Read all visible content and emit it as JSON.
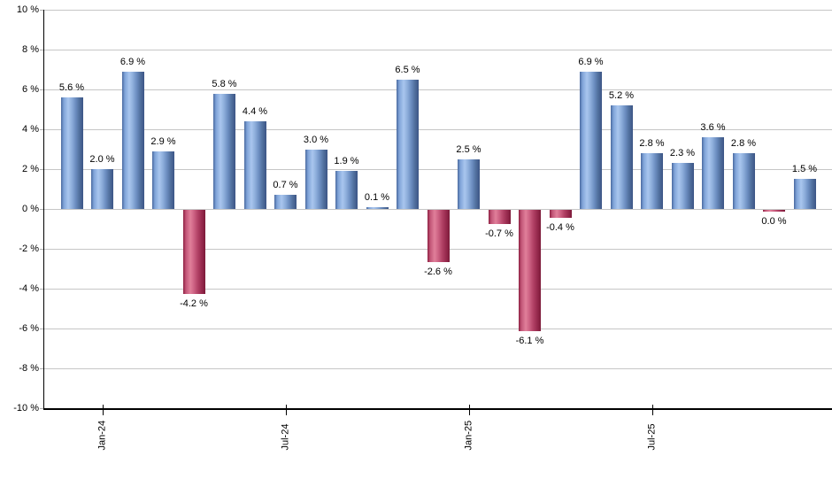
{
  "chart_data": {
    "type": "bar",
    "title": "",
    "xlabel": "",
    "ylabel": "",
    "ylim": [
      -10,
      10
    ],
    "grid": "horizontal",
    "legend": "none",
    "y_tick_values": [
      10,
      8,
      6,
      4,
      2,
      0,
      -2,
      -4,
      -6,
      -8,
      -10
    ],
    "y_tick_labels": [
      "10 %",
      "8 %",
      "6 %",
      "4 %",
      "2 %",
      "0 %",
      "-2 %",
      "-4 %",
      "-6 %",
      "-8 %",
      "-10 %"
    ],
    "values": [
      5.6,
      2.0,
      6.9,
      2.9,
      -4.2,
      5.8,
      4.4,
      0.7,
      3.0,
      1.9,
      0.1,
      6.5,
      -2.6,
      2.5,
      -0.7,
      -6.1,
      -0.4,
      6.9,
      5.2,
      2.8,
      2.3,
      3.6,
      2.8,
      0.0,
      1.5
    ],
    "bar_value_labels": [
      "5.6 %",
      "2.0 %",
      "6.9 %",
      "2.9 %",
      "-4.2 %",
      "5.8 %",
      "4.4 %",
      "0.7 %",
      "3.0 %",
      "1.9 %",
      "0.1 %",
      "6.5 %",
      "-2.6 %",
      "2.5 %",
      "-0.7 %",
      "-6.1 %",
      "-0.4 %",
      "6.9 %",
      "5.2 %",
      "2.8 %",
      "2.3 %",
      "3.6 %",
      "2.8 %",
      "0.0 %",
      "1.5 %"
    ],
    "x_tick_marks": [
      {
        "bar_index": 1,
        "label": "Jan-24"
      },
      {
        "bar_index": 7,
        "label": "Jul-24"
      },
      {
        "bar_index": 13,
        "label": "Jan-25"
      },
      {
        "bar_index": 19,
        "label": "Jul-25"
      }
    ],
    "colors": {
      "positive_bar": "#7a9cd1",
      "negative_bar": "#b43a5f",
      "gridline": "#c6c6c6",
      "axis": "#000000",
      "label_text": "#000000"
    }
  }
}
